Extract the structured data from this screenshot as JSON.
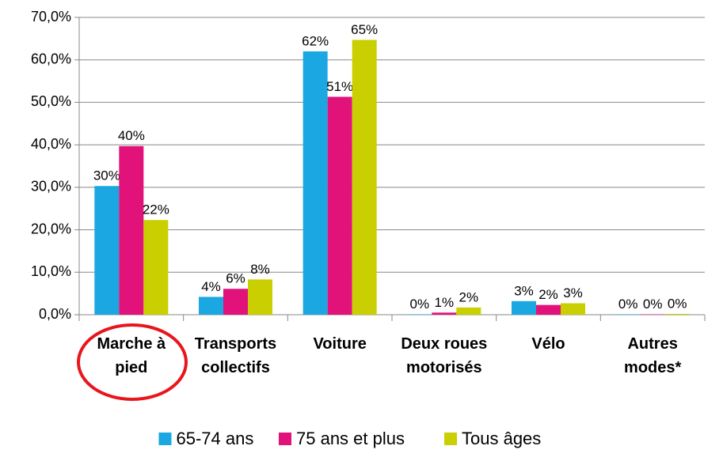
{
  "chart_data": {
    "type": "bar",
    "categories": [
      "Marche à pied",
      "Transports collectifs",
      "Voiture",
      "Deux roues motorisés",
      "Vélo",
      "Autres modes*"
    ],
    "series": [
      {
        "name": "65-74 ans",
        "color": "#1ba7e1",
        "values": [
          30.3,
          4.2,
          62.0,
          0.1,
          3.2,
          0.1
        ],
        "value_labels": [
          "30%",
          "4%",
          "62%",
          "0%",
          "3%",
          "0%"
        ]
      },
      {
        "name": "75 ans et plus",
        "color": "#e2127b",
        "values": [
          39.7,
          6.1,
          51.3,
          0.5,
          2.3,
          0.1
        ],
        "value_labels": [
          "40%",
          "6%",
          "51%",
          "1%",
          "2%",
          "0%"
        ]
      },
      {
        "name": "Tous âges",
        "color": "#c9cf00",
        "values": [
          22.3,
          8.3,
          64.7,
          1.7,
          2.7,
          0.2
        ],
        "value_labels": [
          "22%",
          "8%",
          "65%",
          "2%",
          "3%",
          "0%"
        ]
      }
    ],
    "ylim": [
      0,
      70
    ],
    "yticks": [
      {
        "value": 0,
        "label": "0,0%"
      },
      {
        "value": 10,
        "label": "10,0%"
      },
      {
        "value": 20,
        "label": "20,0%"
      },
      {
        "value": 30,
        "label": "30,0%"
      },
      {
        "value": 40,
        "label": "40,0%"
      },
      {
        "value": 50,
        "label": "50,0%"
      },
      {
        "value": 60,
        "label": "60,0%"
      },
      {
        "value": 70,
        "label": "70,0%"
      }
    ],
    "grid": true,
    "legend": "bottom"
  }
}
